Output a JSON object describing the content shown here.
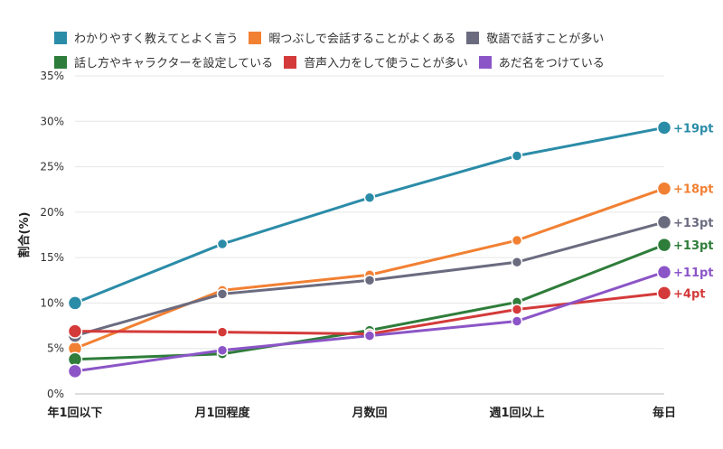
{
  "chart_data": {
    "type": "line",
    "ylabel": "割合(%)",
    "categories": [
      "年1回以下",
      "月1回程度",
      "月数回",
      "週1回以上",
      "毎日"
    ],
    "ylim": [
      0,
      35
    ],
    "yticks": [
      "0%",
      "5%",
      "10%",
      "15%",
      "20%",
      "25%",
      "30%",
      "35%"
    ],
    "grid": true,
    "legend_position": "top",
    "series": [
      {
        "name": "わかりやすく教えてとよく言う",
        "color": "#2b8ca8",
        "values": [
          10.0,
          16.5,
          21.6,
          26.2,
          29.3
        ],
        "label": "+19pt"
      },
      {
        "name": "暇つぶしで会話することがよくある",
        "color": "#f28033",
        "values": [
          5.0,
          11.4,
          13.1,
          16.9,
          22.6
        ],
        "label": "+18pt"
      },
      {
        "name": "敬語で話すことが多い",
        "color": "#6b6b80",
        "values": [
          6.4,
          11.0,
          12.5,
          14.5,
          18.9
        ],
        "label": "+13pt"
      },
      {
        "name": "話し方やキャラクターを設定している",
        "color": "#2e7d3a",
        "values": [
          3.8,
          4.4,
          7.0,
          10.1,
          16.4
        ],
        "label": "+13pt"
      },
      {
        "name": "音声入力をして使うことが多い",
        "color": "#d43a3a",
        "values": [
          6.9,
          6.8,
          6.6,
          9.3,
          11.1
        ],
        "label": "+4pt"
      },
      {
        "name": "あだ名をつけている",
        "color": "#8b55c7",
        "values": [
          2.5,
          4.8,
          6.4,
          8.0,
          13.4
        ],
        "label": "+11pt"
      }
    ]
  }
}
